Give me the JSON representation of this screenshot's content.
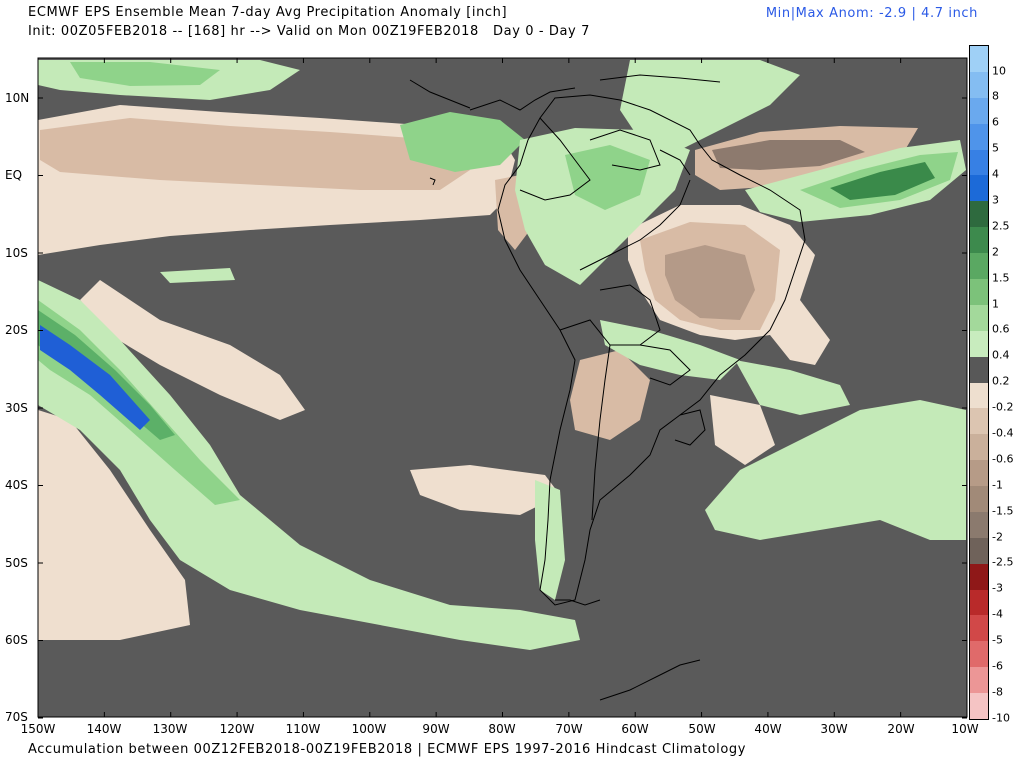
{
  "header": {
    "title_line1": "ECMWF EPS Ensemble Mean 7-day Avg Precipitation Anomaly [inch]",
    "title_line2": "Init: 00Z05FEB2018 -- [168] hr --> Valid on Mon 00Z19FEB2018   Day 0 - Day 7",
    "minmax": "Min|Max Anom: -2.9 | 4.7 inch"
  },
  "footer": "Accumulation between 00Z12FEB2018-00Z19FEB2018 | ECMWF EPS 1997-2016 Hindcast Climatology",
  "map": {
    "lat_labels": [
      "10N",
      "EQ",
      "10S",
      "20S",
      "30S",
      "40S",
      "50S",
      "60S",
      "70S"
    ],
    "lon_labels": [
      "150W",
      "140W",
      "130W",
      "120W",
      "110W",
      "100W",
      "90W",
      "80W",
      "70W",
      "60W",
      "50W",
      "40W",
      "30W",
      "20W",
      "10W"
    ],
    "colors": {
      "ocean_no_anomaly": "#5a5a5a",
      "dry_light": "#efdfcf",
      "dry_mid": "#d8bba5",
      "dry_strong": "#b49a88",
      "dry_max": "#8d7a6e",
      "wet_light": "#c4eab8",
      "wet_mid": "#8fd38a",
      "wet_strong": "#5cb068",
      "wet_max": "#3a8a4a",
      "very_wet": "#1f5fd6",
      "border": "#000000"
    }
  },
  "colorbar": {
    "labels": [
      "10",
      "8",
      "6",
      "5",
      "4",
      "3",
      "2.5",
      "2",
      "1.5",
      "1",
      "0.6",
      "0.4",
      "0.2",
      "-0.2",
      "-0.4",
      "-0.6",
      "-1",
      "-1.5",
      "-2",
      "-2.5",
      "-3",
      "-4",
      "-5",
      "-6",
      "-8",
      "-10"
    ],
    "colors": [
      "#9fd0f6",
      "#84bdf2",
      "#6aa9ee",
      "#4f94ea",
      "#3780e4",
      "#1c6ad8",
      "#2e6a3e",
      "#3d8a4d",
      "#5aa862",
      "#7cc27a",
      "#a3d99b",
      "#c8ecbe",
      "#585858",
      "#eedfcf",
      "#dcc5b1",
      "#cab09b",
      "#b69b87",
      "#a18a78",
      "#8b7a6e",
      "#6f625a",
      "#8f1818",
      "#b92a2a",
      "#d14848",
      "#e06a6a",
      "#ec9696",
      "#f5c4c4"
    ]
  }
}
